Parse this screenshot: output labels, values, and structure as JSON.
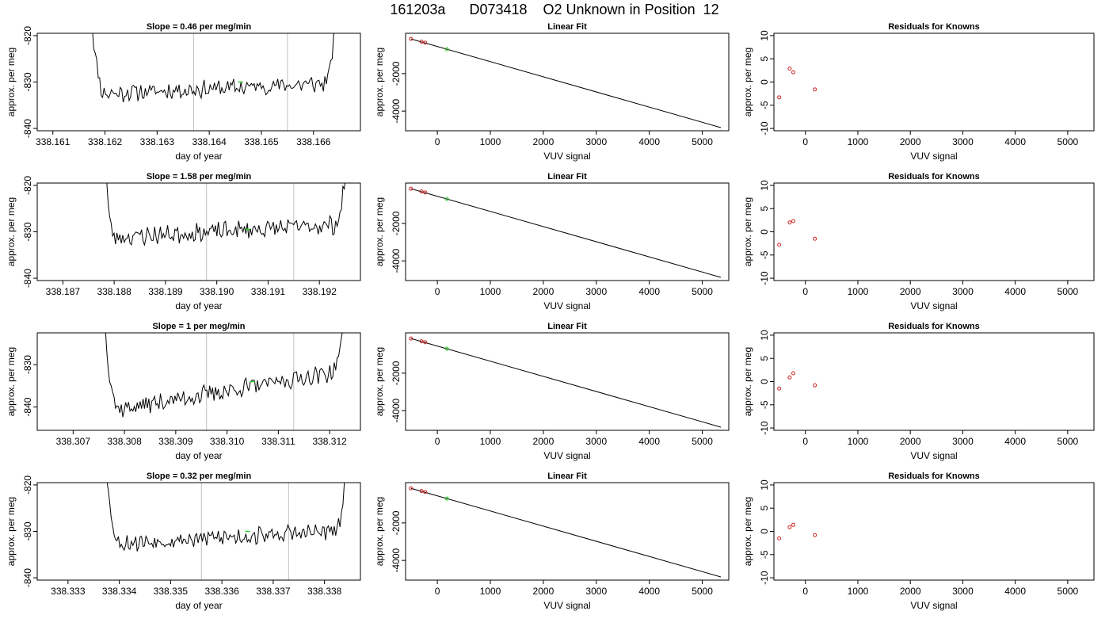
{
  "figure": {
    "title": "161203a      D073418    O2 Unknown in Position  12",
    "colors": {
      "trace": "#000000",
      "point": "#cc2222",
      "highlight": "#22cc22",
      "grid": "#c0c0c0"
    }
  },
  "chart_data": [
    {
      "type": "line",
      "title": "Slope =  0.46  per meg/min",
      "xlabel": "day of year",
      "ylabel": "approx. per meg",
      "xlim": [
        338.1607,
        338.1669
      ],
      "ylim": [
        -840.5,
        -819.5
      ],
      "xticks": [
        338.161,
        338.162,
        338.163,
        338.164,
        338.165,
        338.166
      ],
      "xtick_labels": [
        "338.161",
        "338.162",
        "338.163",
        "338.164",
        "338.165",
        "338.166"
      ],
      "yticks": [
        -840,
        -830,
        -820
      ],
      "ytick_labels": [
        "-840",
        "-830",
        "-820"
      ],
      "vlines": [
        338.1637,
        338.1655
      ],
      "x_range": [
        338.1617,
        338.1665
      ],
      "flat_range": [
        338.162,
        338.1662
      ],
      "level_start": -832.5,
      "level_end": -830.3,
      "noise": 1.6,
      "seed": 11,
      "highlight": {
        "x": 338.1646,
        "y": -830.0
      }
    },
    {
      "type": "scatter",
      "title": "Linear Fit",
      "xlabel": "VUV signal",
      "ylabel": "approx. per meg",
      "xlim": [
        -600,
        5500
      ],
      "ylim": [
        -5050,
        150
      ],
      "xticks": [
        0,
        1000,
        2000,
        3000,
        4000,
        5000
      ],
      "xtick_labels": [
        "0",
        "1000",
        "2000",
        "3000",
        "4000",
        "5000"
      ],
      "yticks": [
        -4000,
        -2000
      ],
      "ytick_labels": [
        "-4000",
        "-2000"
      ],
      "fit_line": {
        "x": [
          -500,
          5350
        ],
        "y": [
          -150,
          -4880
        ]
      },
      "points": [
        {
          "x": -500,
          "y": -150
        },
        {
          "x": -300,
          "y": -300
        },
        {
          "x": -230,
          "y": -350
        }
      ],
      "highlight": {
        "x": 180,
        "y": -700
      }
    },
    {
      "type": "scatter",
      "title": "Residuals for Knowns",
      "xlabel": "VUV signal",
      "ylabel": "approx. per meg",
      "xlim": [
        -600,
        5500
      ],
      "ylim": [
        -10.5,
        10.5
      ],
      "xticks": [
        0,
        1000,
        2000,
        3000,
        4000,
        5000
      ],
      "xtick_labels": [
        "0",
        "1000",
        "2000",
        "3000",
        "4000",
        "5000"
      ],
      "yticks": [
        -10,
        -5,
        0,
        5,
        10
      ],
      "ytick_labels": [
        "-10",
        "-5",
        "0",
        "5",
        "10"
      ],
      "points": [
        {
          "x": -500,
          "y": -3.3
        },
        {
          "x": -300,
          "y": 2.9
        },
        {
          "x": -230,
          "y": 2.1
        },
        {
          "x": 180,
          "y": -1.6
        }
      ]
    },
    {
      "type": "line",
      "title": "Slope =  1.58  per meg/min",
      "xlabel": "day of year",
      "ylabel": "approx. per meg",
      "xlim": [
        338.1865,
        338.1928
      ],
      "ylim": [
        -840.5,
        -819.5
      ],
      "xticks": [
        338.187,
        338.188,
        338.189,
        338.19,
        338.191,
        338.192
      ],
      "xtick_labels": [
        "338.187",
        "338.188",
        "338.189",
        "338.190",
        "338.191",
        "338.192"
      ],
      "yticks": [
        -840,
        -830,
        -820
      ],
      "ytick_labels": [
        "-840",
        "-830",
        "-820"
      ],
      "vlines": [
        338.1898,
        338.1915
      ],
      "x_range": [
        338.1878,
        338.1926
      ],
      "flat_range": [
        338.188,
        338.1923
      ],
      "level_start": -831.2,
      "level_end": -828.5,
      "noise": 1.7,
      "seed": 23,
      "highlight": {
        "x": 338.1906,
        "y": -829.5
      }
    },
    {
      "type": "scatter",
      "title": "Linear Fit",
      "xlabel": "VUV signal",
      "ylabel": "approx. per meg",
      "xlim": [
        -600,
        5500
      ],
      "ylim": [
        -5050,
        150
      ],
      "xticks": [
        0,
        1000,
        2000,
        3000,
        4000,
        5000
      ],
      "xtick_labels": [
        "0",
        "1000",
        "2000",
        "3000",
        "4000",
        "5000"
      ],
      "yticks": [
        -4000,
        -2000
      ],
      "ytick_labels": [
        "-4000",
        "-2000"
      ],
      "fit_line": {
        "x": [
          -500,
          5350
        ],
        "y": [
          -150,
          -4880
        ]
      },
      "points": [
        {
          "x": -500,
          "y": -150
        },
        {
          "x": -300,
          "y": -300
        },
        {
          "x": -230,
          "y": -350
        }
      ],
      "highlight": {
        "x": 180,
        "y": -700
      }
    },
    {
      "type": "scatter",
      "title": "Residuals for Knowns",
      "xlabel": "VUV signal",
      "ylabel": "approx. per meg",
      "xlim": [
        -600,
        5500
      ],
      "ylim": [
        -10.5,
        10.5
      ],
      "xticks": [
        0,
        1000,
        2000,
        3000,
        4000,
        5000
      ],
      "xtick_labels": [
        "0",
        "1000",
        "2000",
        "3000",
        "4000",
        "5000"
      ],
      "yticks": [
        -10,
        -5,
        0,
        5,
        10
      ],
      "ytick_labels": [
        "-10",
        "-5",
        "0",
        "5",
        "10"
      ],
      "points": [
        {
          "x": -500,
          "y": -2.8
        },
        {
          "x": -300,
          "y": 2.0
        },
        {
          "x": -230,
          "y": 2.3
        },
        {
          "x": 180,
          "y": -1.5
        }
      ]
    },
    {
      "type": "line",
      "title": "Slope =  1  per meg/min",
      "xlabel": "day of year",
      "ylabel": "approx. per meg",
      "xlim": [
        338.3063,
        338.3126
      ],
      "ylim": [
        -845.5,
        -822.5
      ],
      "xticks": [
        338.307,
        338.308,
        338.309,
        338.31,
        338.311,
        338.312
      ],
      "xtick_labels": [
        "338.307",
        "338.308",
        "338.309",
        "338.310",
        "338.311",
        "338.312"
      ],
      "yticks": [
        -840,
        -830
      ],
      "ytick_labels": [
        "-840",
        "-830"
      ],
      "vlines": [
        338.3096,
        338.3113
      ],
      "x_range": [
        338.3076,
        338.3124
      ],
      "flat_range": [
        338.3079,
        338.312
      ],
      "level_start": -840.5,
      "level_end": -832.0,
      "noise": 1.8,
      "seed": 37,
      "highlight": {
        "x": 338.3105,
        "y": -834.0
      }
    },
    {
      "type": "scatter",
      "title": "Linear Fit",
      "xlabel": "VUV signal",
      "ylabel": "approx. per meg",
      "xlim": [
        -600,
        5500
      ],
      "ylim": [
        -5050,
        150
      ],
      "xticks": [
        0,
        1000,
        2000,
        3000,
        4000,
        5000
      ],
      "xtick_labels": [
        "0",
        "1000",
        "2000",
        "3000",
        "4000",
        "5000"
      ],
      "yticks": [
        -4000,
        -2000
      ],
      "ytick_labels": [
        "-4000",
        "-2000"
      ],
      "fit_line": {
        "x": [
          -500,
          5350
        ],
        "y": [
          -150,
          -4880
        ]
      },
      "points": [
        {
          "x": -500,
          "y": -150
        },
        {
          "x": -300,
          "y": -300
        },
        {
          "x": -230,
          "y": -350
        }
      ],
      "highlight": {
        "x": 180,
        "y": -700
      }
    },
    {
      "type": "scatter",
      "title": "Residuals for Knowns",
      "xlabel": "VUV signal",
      "ylabel": "approx. per meg",
      "xlim": [
        -600,
        5500
      ],
      "ylim": [
        -10.5,
        10.5
      ],
      "xticks": [
        0,
        1000,
        2000,
        3000,
        4000,
        5000
      ],
      "xtick_labels": [
        "0",
        "1000",
        "2000",
        "3000",
        "4000",
        "5000"
      ],
      "yticks": [
        -10,
        -5,
        0,
        5,
        10
      ],
      "ytick_labels": [
        "-10",
        "-5",
        "0",
        "5",
        "10"
      ],
      "points": [
        {
          "x": -500,
          "y": -1.5
        },
        {
          "x": -300,
          "y": 0.9
        },
        {
          "x": -230,
          "y": 1.8
        },
        {
          "x": 180,
          "y": -0.8
        }
      ]
    },
    {
      "type": "line",
      "title": "Slope =  0.32  per meg/min",
      "xlabel": "day of year",
      "ylabel": "approx. per meg",
      "xlim": [
        338.3324,
        338.3387
      ],
      "ylim": [
        -840.5,
        -819.5
      ],
      "xticks": [
        338.333,
        338.334,
        338.335,
        338.336,
        338.337,
        338.338
      ],
      "xtick_labels": [
        "338.333",
        "338.334",
        "338.335",
        "338.336",
        "338.337",
        "338.338"
      ],
      "yticks": [
        -840,
        -830,
        -820
      ],
      "ytick_labels": [
        "-840",
        "-830",
        "-820"
      ],
      "vlines": [
        338.3356,
        338.3373
      ],
      "x_range": [
        338.3337,
        338.3385
      ],
      "flat_range": [
        338.334,
        338.3382
      ],
      "level_start": -832.5,
      "level_end": -830.0,
      "noise": 1.6,
      "seed": 53,
      "highlight": {
        "x": 338.3365,
        "y": -830.0
      }
    },
    {
      "type": "scatter",
      "title": "Linear Fit",
      "xlabel": "VUV signal",
      "ylabel": "approx. per meg",
      "xlim": [
        -600,
        5500
      ],
      "ylim": [
        -5050,
        150
      ],
      "xticks": [
        0,
        1000,
        2000,
        3000,
        4000,
        5000
      ],
      "xtick_labels": [
        "0",
        "1000",
        "2000",
        "3000",
        "4000",
        "5000"
      ],
      "yticks": [
        -4000,
        -2000
      ],
      "ytick_labels": [
        "-4000",
        "-2000"
      ],
      "fit_line": {
        "x": [
          -500,
          5350
        ],
        "y": [
          -150,
          -4880
        ]
      },
      "points": [
        {
          "x": -500,
          "y": -150
        },
        {
          "x": -300,
          "y": -300
        },
        {
          "x": -230,
          "y": -350
        }
      ],
      "highlight": {
        "x": 180,
        "y": -700
      }
    },
    {
      "type": "scatter",
      "title": "Residuals for Knowns",
      "xlabel": "VUV signal",
      "ylabel": "approx. per meg",
      "xlim": [
        -600,
        5500
      ],
      "ylim": [
        -10.5,
        10.5
      ],
      "xticks": [
        0,
        1000,
        2000,
        3000,
        4000,
        5000
      ],
      "xtick_labels": [
        "0",
        "1000",
        "2000",
        "3000",
        "4000",
        "5000"
      ],
      "yticks": [
        -10,
        -5,
        0,
        5,
        10
      ],
      "ytick_labels": [
        "-10",
        "-5",
        "0",
        "5",
        "10"
      ],
      "points": [
        {
          "x": -500,
          "y": -1.5
        },
        {
          "x": -300,
          "y": 0.9
        },
        {
          "x": -230,
          "y": 1.4
        },
        {
          "x": 180,
          "y": -0.8
        }
      ]
    }
  ]
}
